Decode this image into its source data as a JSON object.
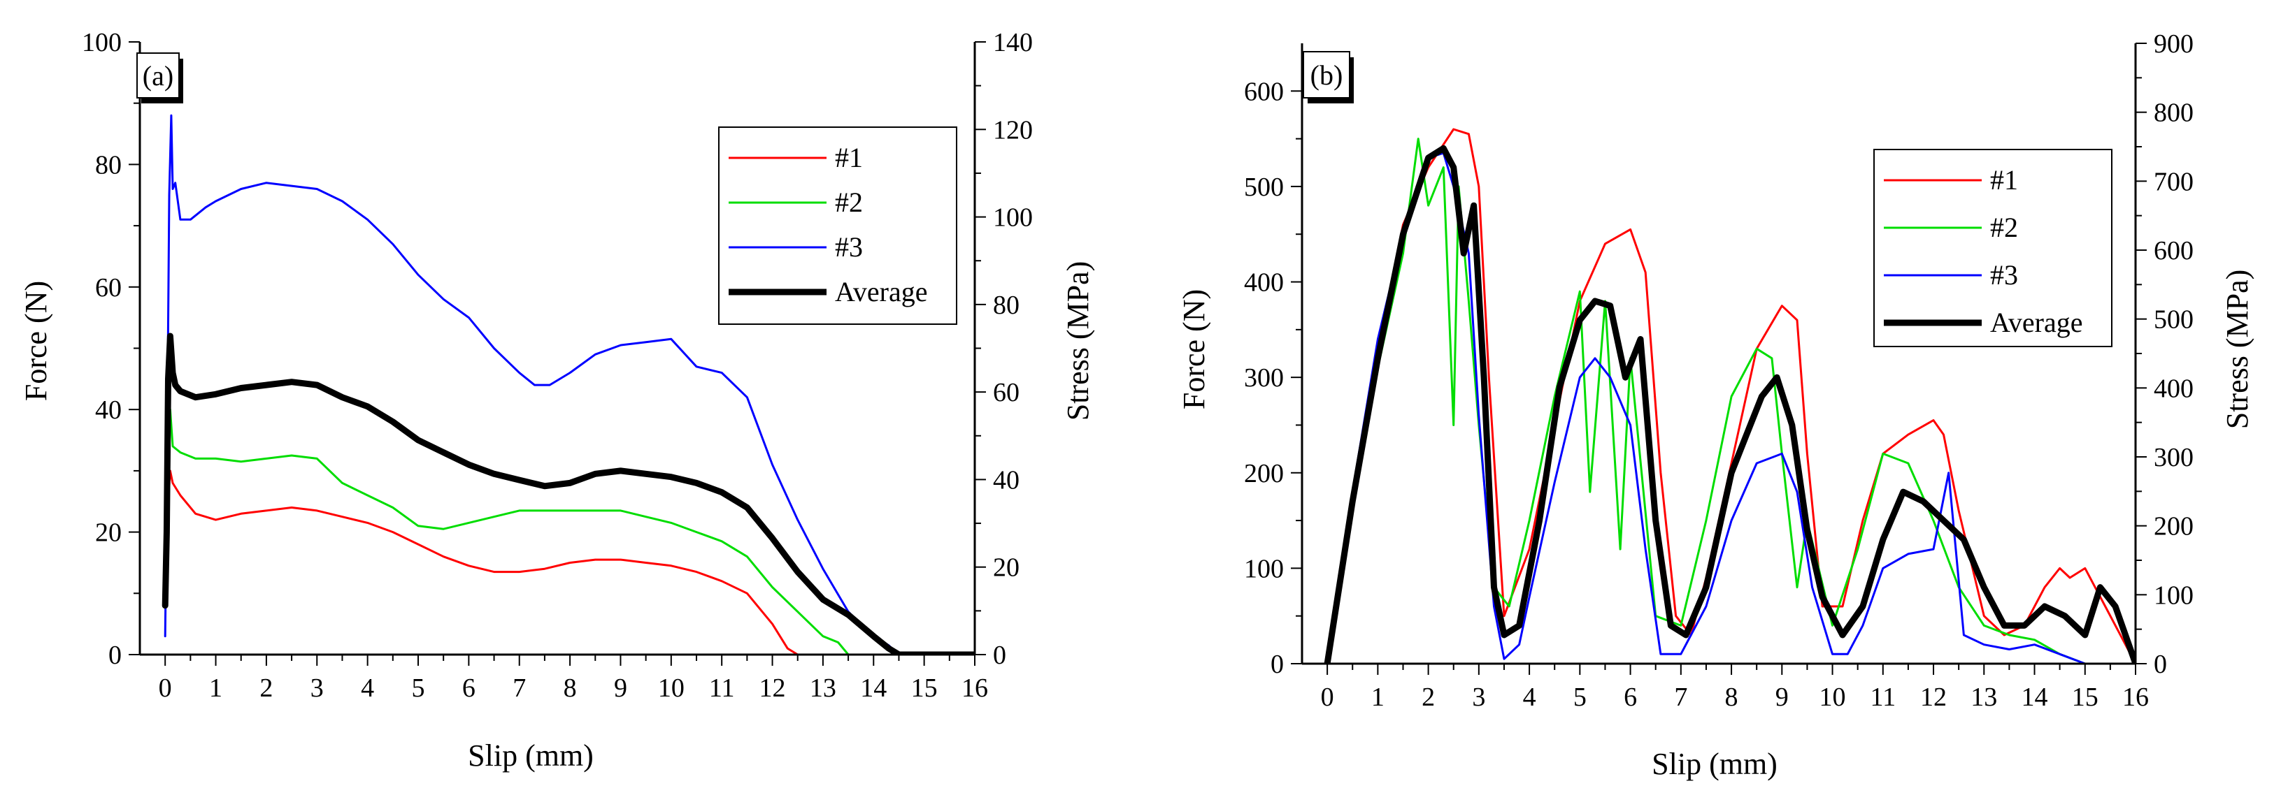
{
  "figure": {
    "panels": [
      "(a)",
      "(b)"
    ]
  },
  "chart_data": [
    {
      "type": "line",
      "panel_label": "(a)",
      "xlabel": "Slip (mm)",
      "ylabel": "Force (N)",
      "y2label": "Stress (MPa)",
      "xlim": [
        -0.5,
        16
      ],
      "ylim": [
        0,
        100
      ],
      "y2lim": [
        0,
        140
      ],
      "x_ticks": [
        0,
        1,
        2,
        3,
        4,
        5,
        6,
        7,
        8,
        9,
        10,
        11,
        12,
        13,
        14,
        15,
        16
      ],
      "y_ticks": [
        0,
        20,
        40,
        60,
        80,
        100
      ],
      "y2_ticks": [
        0,
        20,
        40,
        60,
        80,
        100,
        120,
        140
      ],
      "legend_position": "upper-right",
      "series": [
        {
          "name": "#1",
          "color": "#ff0000",
          "width": 3,
          "x": [
            0,
            0.03,
            0.06,
            0.1,
            0.15,
            0.3,
            0.6,
            1,
            1.5,
            2,
            2.5,
            3,
            3.5,
            4,
            4.5,
            5,
            5.5,
            6,
            6.5,
            7,
            7.5,
            8,
            8.5,
            9,
            9.5,
            10,
            10.5,
            11,
            11.5,
            12,
            12.3,
            12.5,
            13,
            14,
            15,
            16
          ],
          "y": [
            8,
            18,
            25,
            30,
            28,
            26,
            23,
            22,
            23,
            23.5,
            24,
            23.5,
            22.5,
            21.5,
            20,
            18,
            16,
            14.5,
            13.5,
            13.5,
            14,
            15,
            15.5,
            15.5,
            15,
            14.5,
            13.5,
            12,
            10,
            5,
            1,
            0,
            0,
            0,
            0,
            0
          ]
        },
        {
          "name": "#2",
          "color": "#00dd00",
          "width": 3,
          "x": [
            0,
            0.03,
            0.06,
            0.1,
            0.15,
            0.3,
            0.6,
            1,
            1.5,
            2,
            2.5,
            3,
            3.5,
            4,
            4.5,
            5,
            5.5,
            6,
            6.5,
            7,
            7.5,
            8,
            8.5,
            9,
            9.5,
            10,
            10.5,
            11,
            11.5,
            12,
            12.5,
            13,
            13.3,
            13.5,
            14,
            15,
            16
          ],
          "y": [
            10,
            25,
            32,
            40,
            34,
            33,
            32,
            32,
            31.5,
            32,
            32.5,
            32,
            28,
            26,
            24,
            21,
            20.5,
            21.5,
            22.5,
            23.5,
            23.5,
            23.5,
            23.5,
            23.5,
            22.5,
            21.5,
            20,
            18.5,
            16,
            11,
            7,
            3,
            2,
            0,
            0,
            0,
            0
          ]
        },
        {
          "name": "#3",
          "color": "#0000ff",
          "width": 3,
          "x": [
            0,
            0.03,
            0.08,
            0.12,
            0.15,
            0.2,
            0.3,
            0.5,
            0.8,
            1,
            1.5,
            2,
            2.5,
            3,
            3.5,
            4,
            4.5,
            5,
            5.5,
            6,
            6.5,
            7,
            7.3,
            7.6,
            8,
            8.5,
            9,
            9.5,
            10,
            10.5,
            11,
            11.5,
            12,
            12.5,
            13,
            13.5,
            14,
            14.3,
            14.5,
            15,
            16
          ],
          "y": [
            3,
            25,
            75,
            88,
            76,
            77,
            71,
            71,
            73,
            74,
            76,
            77,
            76.5,
            76,
            74,
            71,
            67,
            62,
            58,
            55,
            50,
            46,
            44,
            44,
            46,
            49,
            50.5,
            51,
            51.5,
            47,
            46,
            42,
            31,
            22,
            14,
            7,
            3,
            1.5,
            0,
            0,
            0
          ]
        },
        {
          "name": "Average",
          "color": "#000000",
          "width": 9,
          "x": [
            0,
            0.03,
            0.06,
            0.1,
            0.15,
            0.2,
            0.3,
            0.6,
            1,
            1.5,
            2,
            2.5,
            3,
            3.5,
            4,
            4.5,
            5,
            5.5,
            6,
            6.5,
            7,
            7.5,
            8,
            8.5,
            9,
            9.5,
            10,
            10.5,
            11,
            11.5,
            12,
            12.5,
            13,
            13.5,
            14,
            14.3,
            14.5,
            15,
            16
          ],
          "y": [
            8,
            20,
            45,
            52,
            46,
            44,
            43,
            42,
            42.5,
            43.5,
            44,
            44.5,
            44,
            42,
            40.5,
            38,
            35,
            33,
            31,
            29.5,
            28.5,
            27.5,
            28,
            29.5,
            30,
            29.5,
            29,
            28,
            26.5,
            24,
            19,
            13.5,
            9,
            6.5,
            3,
            1,
            0,
            0,
            0
          ]
        }
      ]
    },
    {
      "type": "line",
      "panel_label": "(b)",
      "xlabel": "Slip (mm)",
      "ylabel": "Force (N)",
      "y2label": "Stress (MPa)",
      "xlim": [
        -0.5,
        16
      ],
      "ylim": [
        0,
        650
      ],
      "y2lim": [
        0,
        900
      ],
      "x_ticks": [
        0,
        1,
        2,
        3,
        4,
        5,
        6,
        7,
        8,
        9,
        10,
        11,
        12,
        13,
        14,
        15,
        16
      ],
      "y_ticks": [
        0,
        100,
        200,
        300,
        400,
        500,
        600
      ],
      "y2_ticks": [
        0,
        100,
        200,
        300,
        400,
        500,
        600,
        700,
        800,
        900
      ],
      "legend_position": "upper-right",
      "series": [
        {
          "name": "#1",
          "color": "#ff0000",
          "width": 3,
          "x": [
            0,
            0.5,
            1,
            1.5,
            2,
            2.5,
            2.8,
            3,
            3.2,
            3.5,
            4,
            4.5,
            5,
            5.5,
            6,
            6.3,
            6.6,
            6.9,
            7.2,
            7.5,
            8,
            8.5,
            9,
            9.3,
            9.5,
            9.8,
            10.2,
            10.6,
            11,
            11.5,
            12,
            12.2,
            12.5,
            13,
            13.4,
            13.8,
            14.2,
            14.5,
            14.7,
            15,
            15.2,
            15.4,
            15.8,
            16
          ],
          "y": [
            0,
            180,
            330,
            460,
            520,
            560,
            555,
            500,
            300,
            50,
            120,
            250,
            380,
            440,
            455,
            410,
            200,
            50,
            30,
            90,
            210,
            330,
            375,
            360,
            220,
            60,
            60,
            150,
            220,
            240,
            255,
            240,
            160,
            50,
            30,
            40,
            80,
            100,
            90,
            100,
            80,
            60,
            20,
            0
          ]
        },
        {
          "name": "#2",
          "color": "#00dd00",
          "width": 3,
          "x": [
            0,
            0.5,
            1,
            1.5,
            1.8,
            2,
            2.3,
            2.5,
            2.6,
            2.8,
            3,
            3.3,
            3.6,
            4,
            4.5,
            5,
            5.2,
            5.5,
            5.8,
            6,
            6.5,
            7,
            7.5,
            8,
            8.5,
            8.8,
            9,
            9.3,
            9.5,
            10,
            10.5,
            11,
            11.5,
            12,
            12.5,
            13,
            13.5,
            14,
            14.5,
            15,
            15.5,
            16
          ],
          "y": [
            0,
            160,
            310,
            430,
            550,
            480,
            520,
            250,
            500,
            380,
            250,
            80,
            60,
            150,
            280,
            390,
            180,
            380,
            120,
            320,
            50,
            40,
            150,
            280,
            330,
            320,
            220,
            80,
            150,
            40,
            120,
            220,
            210,
            150,
            80,
            40,
            30,
            25,
            10,
            0,
            0,
            0
          ]
        },
        {
          "name": "#3",
          "color": "#0000ff",
          "width": 3,
          "x": [
            0,
            0.5,
            1,
            1.5,
            2,
            2.3,
            2.5,
            2.8,
            3,
            3.3,
            3.5,
            3.8,
            4,
            4.5,
            5,
            5.3,
            5.6,
            6,
            6.3,
            6.6,
            7,
            7.5,
            8,
            8.5,
            9,
            9.3,
            9.6,
            10,
            10.3,
            10.6,
            11,
            11.5,
            12,
            12.3,
            12.6,
            13,
            13.5,
            14,
            14.5,
            15,
            16
          ],
          "y": [
            0,
            180,
            340,
            450,
            530,
            535,
            500,
            430,
            260,
            60,
            5,
            20,
            70,
            190,
            300,
            320,
            300,
            250,
            120,
            10,
            10,
            60,
            150,
            210,
            220,
            180,
            80,
            10,
            10,
            40,
            100,
            115,
            120,
            200,
            30,
            20,
            15,
            20,
            10,
            0,
            0
          ]
        },
        {
          "name": "Average",
          "color": "#000000",
          "width": 9,
          "x": [
            0,
            0.5,
            1,
            1.5,
            2,
            2.3,
            2.5,
            2.7,
            2.9,
            3.1,
            3.3,
            3.5,
            3.8,
            4.2,
            4.6,
            5,
            5.3,
            5.6,
            5.9,
            6.2,
            6.5,
            6.8,
            7.1,
            7.5,
            8,
            8.3,
            8.6,
            8.9,
            9.2,
            9.5,
            9.8,
            10.2,
            10.6,
            11,
            11.4,
            11.8,
            12.2,
            12.6,
            13,
            13.4,
            13.8,
            14.2,
            14.6,
            15,
            15.3,
            15.6,
            16
          ],
          "y": [
            0,
            170,
            320,
            450,
            530,
            540,
            520,
            430,
            480,
            300,
            80,
            30,
            40,
            150,
            290,
            360,
            380,
            375,
            300,
            340,
            150,
            40,
            30,
            80,
            200,
            240,
            280,
            300,
            250,
            140,
            70,
            30,
            60,
            130,
            180,
            170,
            150,
            130,
            80,
            40,
            40,
            60,
            50,
            30,
            80,
            60,
            0
          ]
        }
      ]
    }
  ]
}
